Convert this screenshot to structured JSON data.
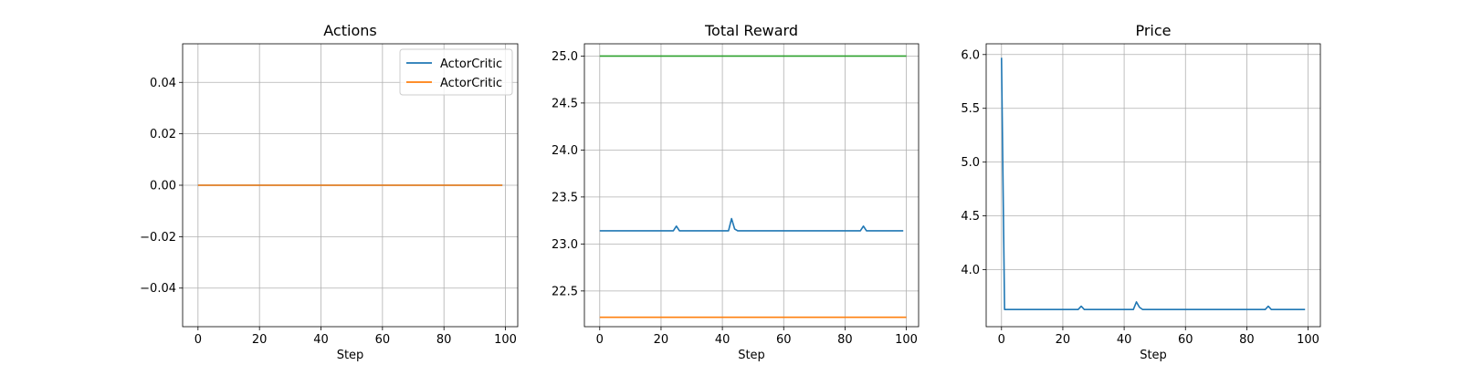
{
  "chart_data": [
    {
      "type": "line",
      "title": "Actions",
      "xlabel": "Step",
      "ylabel": "",
      "xlim": [
        -5,
        104
      ],
      "ylim": [
        -0.055,
        0.055
      ],
      "xticks": [
        0,
        20,
        40,
        60,
        80,
        100
      ],
      "yticks": [
        -0.04,
        -0.02,
        0.0,
        0.02,
        0.04
      ],
      "ytick_labels": [
        "−0.04",
        "−0.02",
        "0.00",
        "0.02",
        "0.04"
      ],
      "grid": true,
      "legend": "top-right",
      "series": [
        {
          "name": "ActorCritic",
          "color": "#1f77b4",
          "points": [
            [
              0,
              0
            ],
            [
              99,
              0
            ]
          ]
        },
        {
          "name": "ActorCritic",
          "color": "#ff7f0e",
          "points": [
            [
              0,
              0
            ],
            [
              99,
              0
            ]
          ]
        }
      ]
    },
    {
      "type": "line",
      "title": "Total Reward",
      "xlabel": "Step",
      "ylabel": "",
      "xlim": [
        -5,
        104
      ],
      "ylim": [
        22.12,
        25.13
      ],
      "xticks": [
        0,
        20,
        40,
        60,
        80,
        100
      ],
      "yticks": [
        22.5,
        23.0,
        23.5,
        24.0,
        24.5,
        25.0
      ],
      "ytick_labels": [
        "22.5",
        "23.0",
        "23.5",
        "24.0",
        "24.5",
        "25.0"
      ],
      "grid": true,
      "series": [
        {
          "color": "#2ca02c",
          "points": [
            [
              0,
              25.0
            ],
            [
              100,
              25.0
            ]
          ]
        },
        {
          "color": "#1f77b4",
          "points": [
            [
              0,
              23.14
            ],
            [
              24,
              23.14
            ],
            [
              25,
              23.19
            ],
            [
              26,
              23.14
            ],
            [
              42,
              23.14
            ],
            [
              43,
              23.27
            ],
            [
              44,
              23.16
            ],
            [
              45,
              23.14
            ],
            [
              85,
              23.14
            ],
            [
              86,
              23.19
            ],
            [
              87,
              23.14
            ],
            [
              99,
              23.14
            ]
          ]
        },
        {
          "color": "#ff7f0e",
          "points": [
            [
              0,
              22.22
            ],
            [
              100,
              22.22
            ]
          ]
        }
      ]
    },
    {
      "type": "line",
      "title": "Price",
      "xlabel": "Step",
      "ylabel": "",
      "xlim": [
        -5,
        104
      ],
      "ylim": [
        3.47,
        6.1
      ],
      "xticks": [
        0,
        20,
        40,
        60,
        80,
        100
      ],
      "yticks": [
        4.0,
        4.5,
        5.0,
        5.5,
        6.0
      ],
      "ytick_labels": [
        "4.0",
        "4.5",
        "5.0",
        "5.5",
        "6.0"
      ],
      "grid": true,
      "series": [
        {
          "color": "#1f77b4",
          "points": [
            [
              0,
              5.97
            ],
            [
              1,
              3.63
            ],
            [
              25,
              3.63
            ],
            [
              26,
              3.66
            ],
            [
              27,
              3.63
            ],
            [
              43,
              3.63
            ],
            [
              44,
              3.7
            ],
            [
              45,
              3.65
            ],
            [
              46,
              3.63
            ],
            [
              86,
              3.63
            ],
            [
              87,
              3.66
            ],
            [
              88,
              3.63
            ],
            [
              99,
              3.63
            ]
          ]
        }
      ]
    }
  ]
}
